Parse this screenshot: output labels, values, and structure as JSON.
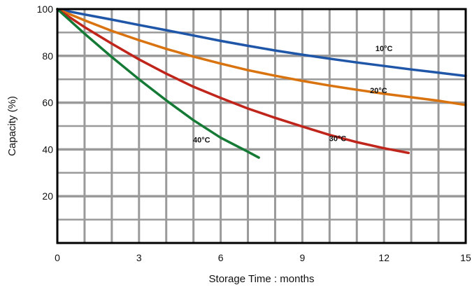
{
  "chart_data": {
    "type": "line",
    "title": "",
    "xlabel": "Storage Time : months",
    "ylabel": "Capacity  (%)",
    "xlim": [
      0,
      15
    ],
    "ylim": [
      0,
      100
    ],
    "x_ticks": [
      0,
      3,
      6,
      9,
      12,
      15
    ],
    "x_tick_labels": [
      "0",
      "3",
      "6",
      "9",
      "12",
      "15"
    ],
    "y_ticks": [
      20,
      40,
      60,
      80,
      100
    ],
    "y_tick_labels": [
      "20",
      "40",
      "60",
      "80",
      "100"
    ],
    "grid": true,
    "grid_color": "#9a9a9a",
    "series": [
      {
        "name": "10°C",
        "color": "#1f56a8",
        "label_at": [
          12,
          82
        ],
        "x": [
          0,
          1,
          2,
          3,
          4,
          5,
          6,
          7,
          8,
          9,
          10,
          11,
          12,
          13,
          14,
          15
        ],
        "y": [
          100,
          97.7,
          95.5,
          93.2,
          91,
          88.7,
          86.4,
          84.3,
          82.3,
          80.5,
          78.8,
          77.2,
          75.7,
          74.2,
          72.8,
          71.4
        ]
      },
      {
        "name": "20°C",
        "color": "#d9730f",
        "label_at": [
          11.8,
          64
        ],
        "x": [
          0,
          1,
          2,
          3,
          4,
          5,
          6,
          7,
          8,
          9,
          10,
          11,
          12,
          13,
          14,
          15
        ],
        "y": [
          100,
          95.2,
          90.7,
          86.7,
          83,
          79.7,
          76.7,
          73.9,
          71.5,
          69.3,
          67.3,
          65.5,
          63.8,
          62.3,
          60.8,
          59
        ]
      },
      {
        "name": "30°C",
        "color": "#c0251b",
        "label_at": [
          10.3,
          43.5
        ],
        "x": [
          0,
          1,
          2,
          3,
          4,
          5,
          6,
          7,
          8,
          9,
          10,
          11,
          12,
          12.9
        ],
        "y": [
          100,
          92.3,
          85.2,
          78.5,
          72.4,
          66.8,
          62,
          57.5,
          53.5,
          49.8,
          46.2,
          43.1,
          40.5,
          38.5
        ]
      },
      {
        "name": "40°C",
        "color": "#157a35",
        "label_at": [
          5.3,
          43
        ],
        "x": [
          0,
          1,
          2,
          3,
          4,
          5,
          6,
          7,
          7.4
        ],
        "y": [
          100,
          89.5,
          79.5,
          70,
          61,
          52.5,
          45,
          39,
          36.5
        ]
      }
    ]
  }
}
